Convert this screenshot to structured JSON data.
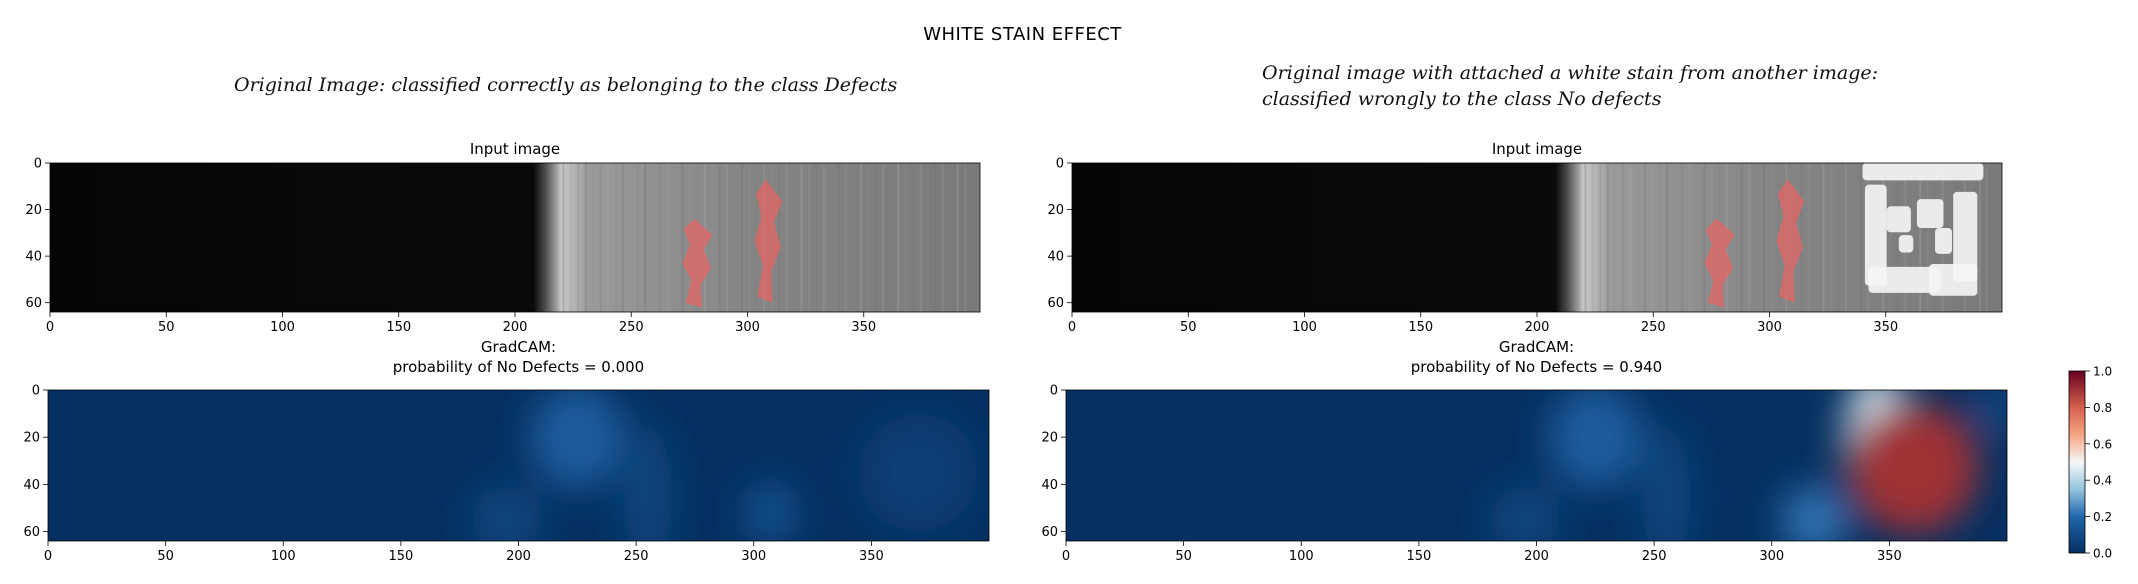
{
  "figure_title": "WHITE STAIN EFFECT",
  "notes": {
    "left": "Original Image: classified correctly as belonging to the class Defects",
    "right_line1": "Original image with attached a white stain from another image:",
    "right_line2": "classified wrongly to the class No defects"
  },
  "colors": {
    "cmap_low": "#053061",
    "cmap_mid": "#f7f7f7",
    "cmap_high": "#67001f",
    "defect_mask": "#e06666",
    "steel_dark": "#050505",
    "steel_bright": "#8a8a8a"
  },
  "chart_data": [
    {
      "type": "heatmap",
      "panel": "input-left",
      "title": "Input image",
      "xlim": [
        0,
        400
      ],
      "ylim": [
        64,
        0
      ],
      "xticks": [
        0,
        50,
        100,
        150,
        200,
        250,
        300,
        350
      ],
      "yticks": [
        0,
        20,
        40,
        60
      ],
      "steel_edge_x": 212,
      "defect_regions": [
        {
          "x": [
            272,
            285
          ],
          "y": [
            24,
            62
          ]
        },
        {
          "x": [
            303,
            315
          ],
          "y": [
            7,
            60
          ]
        }
      ],
      "white_stain": null
    },
    {
      "type": "heatmap",
      "panel": "input-right",
      "title": "Input image",
      "xlim": [
        0,
        400
      ],
      "ylim": [
        64,
        0
      ],
      "xticks": [
        0,
        50,
        100,
        150,
        200,
        250,
        300,
        350
      ],
      "yticks": [
        0,
        20,
        40,
        60
      ],
      "steel_edge_x": 212,
      "defect_regions": [
        {
          "x": [
            272,
            285
          ],
          "y": [
            24,
            62
          ]
        },
        {
          "x": [
            303,
            315
          ],
          "y": [
            7,
            60
          ]
        }
      ],
      "white_stain": {
        "x": [
          340,
          392
        ],
        "y": [
          0,
          62
        ]
      }
    },
    {
      "type": "heatmap",
      "panel": "gradcam-left",
      "title_line1": "GradCAM:",
      "title_line2": "probability of No Defects = 0.000",
      "xlim": [
        0,
        400
      ],
      "ylim": [
        64,
        0
      ],
      "xticks": [
        0,
        50,
        100,
        150,
        200,
        250,
        300,
        350
      ],
      "yticks": [
        0,
        20,
        40,
        60
      ],
      "colormap": "RdBu_r",
      "hotspots": [
        {
          "x": 225,
          "y": 20,
          "rx": 20,
          "ry": 22,
          "v": 0.16
        },
        {
          "x": 195,
          "y": 55,
          "rx": 15,
          "ry": 14,
          "v": 0.08
        },
        {
          "x": 255,
          "y": 45,
          "rx": 10,
          "ry": 30,
          "v": 0.08
        },
        {
          "x": 307,
          "y": 52,
          "rx": 10,
          "ry": 12,
          "v": 0.14
        },
        {
          "x": 370,
          "y": 35,
          "rx": 25,
          "ry": 25,
          "v": 0.05
        }
      ]
    },
    {
      "type": "heatmap",
      "panel": "gradcam-right",
      "title_line1": "GradCAM:",
      "title_line2": "probability of No Defects = 0.940",
      "xlim": [
        0,
        400
      ],
      "ylim": [
        64,
        0
      ],
      "xticks": [
        0,
        50,
        100,
        150,
        200,
        250,
        300,
        350
      ],
      "yticks": [
        0,
        20,
        40,
        60
      ],
      "colormap": "RdBu_r",
      "hotspots": [
        {
          "x": 360,
          "y": 33,
          "rx": 28,
          "ry": 28,
          "v": 0.9
        },
        {
          "x": 345,
          "y": 22,
          "rx": 14,
          "ry": 30,
          "v": 0.45
        },
        {
          "x": 318,
          "y": 55,
          "rx": 14,
          "ry": 14,
          "v": 0.22
        },
        {
          "x": 225,
          "y": 20,
          "rx": 20,
          "ry": 22,
          "v": 0.16
        },
        {
          "x": 195,
          "y": 55,
          "rx": 15,
          "ry": 14,
          "v": 0.08
        },
        {
          "x": 255,
          "y": 45,
          "rx": 10,
          "ry": 30,
          "v": 0.08
        },
        {
          "x": 395,
          "y": 8,
          "rx": 8,
          "ry": 10,
          "v": 0.1
        }
      ]
    },
    {
      "type": "colorbar",
      "range": [
        0.0,
        1.0
      ],
      "ticks": [
        "0.0",
        "0.2",
        "0.4",
        "0.6",
        "0.8",
        "1.0"
      ],
      "colormap": "RdBu_r"
    }
  ]
}
